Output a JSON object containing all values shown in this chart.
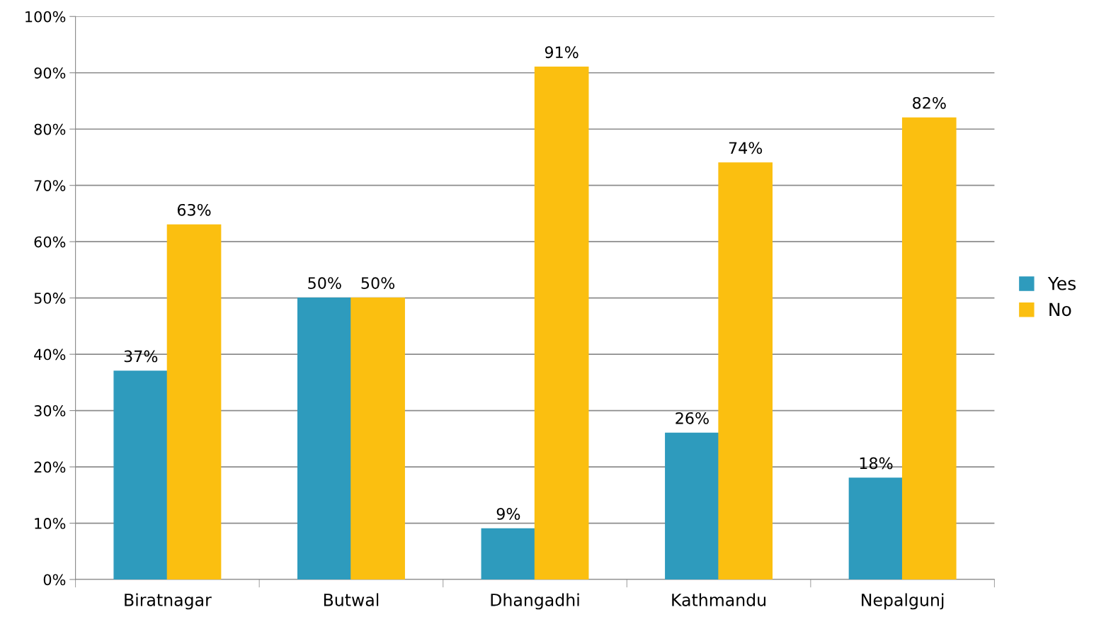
{
  "chart_data": {
    "type": "bar",
    "categories": [
      "Biratnagar",
      "Butwal",
      "Dhangadhi",
      "Kathmandu",
      "Nepalgunj"
    ],
    "series": [
      {
        "name": "Yes",
        "color": "#2e9bbd",
        "values": [
          37,
          50,
          9,
          26,
          18
        ],
        "value_labels": [
          "37%",
          "50%",
          "9%",
          "26%",
          "18%"
        ]
      },
      {
        "name": "No",
        "color": "#fbbf10",
        "values": [
          63,
          50,
          91,
          74,
          82
        ],
        "value_labels": [
          "63%",
          "50%",
          "91%",
          "74%",
          "82%"
        ]
      }
    ],
    "ylim": [
      0,
      100
    ],
    "yticks": [
      {
        "value": 0,
        "label": "0%"
      },
      {
        "value": 10,
        "label": "10%"
      },
      {
        "value": 20,
        "label": "20%"
      },
      {
        "value": 30,
        "label": "30%"
      },
      {
        "value": 40,
        "label": "40%"
      },
      {
        "value": 50,
        "label": "50%"
      },
      {
        "value": 60,
        "label": "60%"
      },
      {
        "value": 70,
        "label": "70%"
      },
      {
        "value": 80,
        "label": "80%"
      },
      {
        "value": 90,
        "label": "90%"
      },
      {
        "value": 100,
        "label": "100%"
      }
    ],
    "grid": "y",
    "legend": "right"
  }
}
